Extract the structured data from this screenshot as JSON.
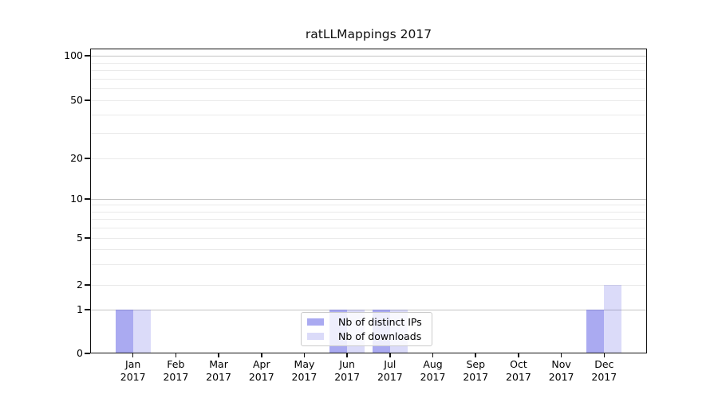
{
  "figure": {
    "background": "#ffffff"
  },
  "chart_data": {
    "type": "bar",
    "title": "ratLLMappings 2017",
    "categories": [
      "Jan",
      "Feb",
      "Mar",
      "Apr",
      "May",
      "Jun",
      "Jul",
      "Aug",
      "Sep",
      "Oct",
      "Nov",
      "Dec"
    ],
    "category_year": "2017",
    "series": [
      {
        "name": "Nb of distinct IPs",
        "color": "rgba(86,86,227,0.5)",
        "values": [
          1,
          0,
          0,
          0,
          0,
          1,
          1,
          0,
          0,
          0,
          0,
          1
        ]
      },
      {
        "name": "Nb of downloads",
        "color": "rgba(86,86,227,0.21)",
        "values": [
          1,
          0,
          0,
          0,
          0,
          1,
          1,
          0,
          0,
          0,
          0,
          2
        ]
      }
    ],
    "yaxis": {
      "scale": "log-like with linear segment below 1",
      "ticks": [
        100,
        50,
        20,
        10,
        5,
        2,
        1,
        0
      ],
      "minor_gridline_values": [
        3,
        4,
        6,
        7,
        8,
        9,
        30,
        40,
        60,
        70,
        80,
        90
      ],
      "range": [
        0,
        100
      ]
    },
    "grid": {
      "orientation": "horizontal-only",
      "decade_line_color": "#c3c3c3",
      "minor_line_color": "#eaeaea"
    },
    "legend": {
      "position": "lower center",
      "entries": [
        "Nb of distinct IPs",
        "Nb of downloads"
      ]
    }
  }
}
